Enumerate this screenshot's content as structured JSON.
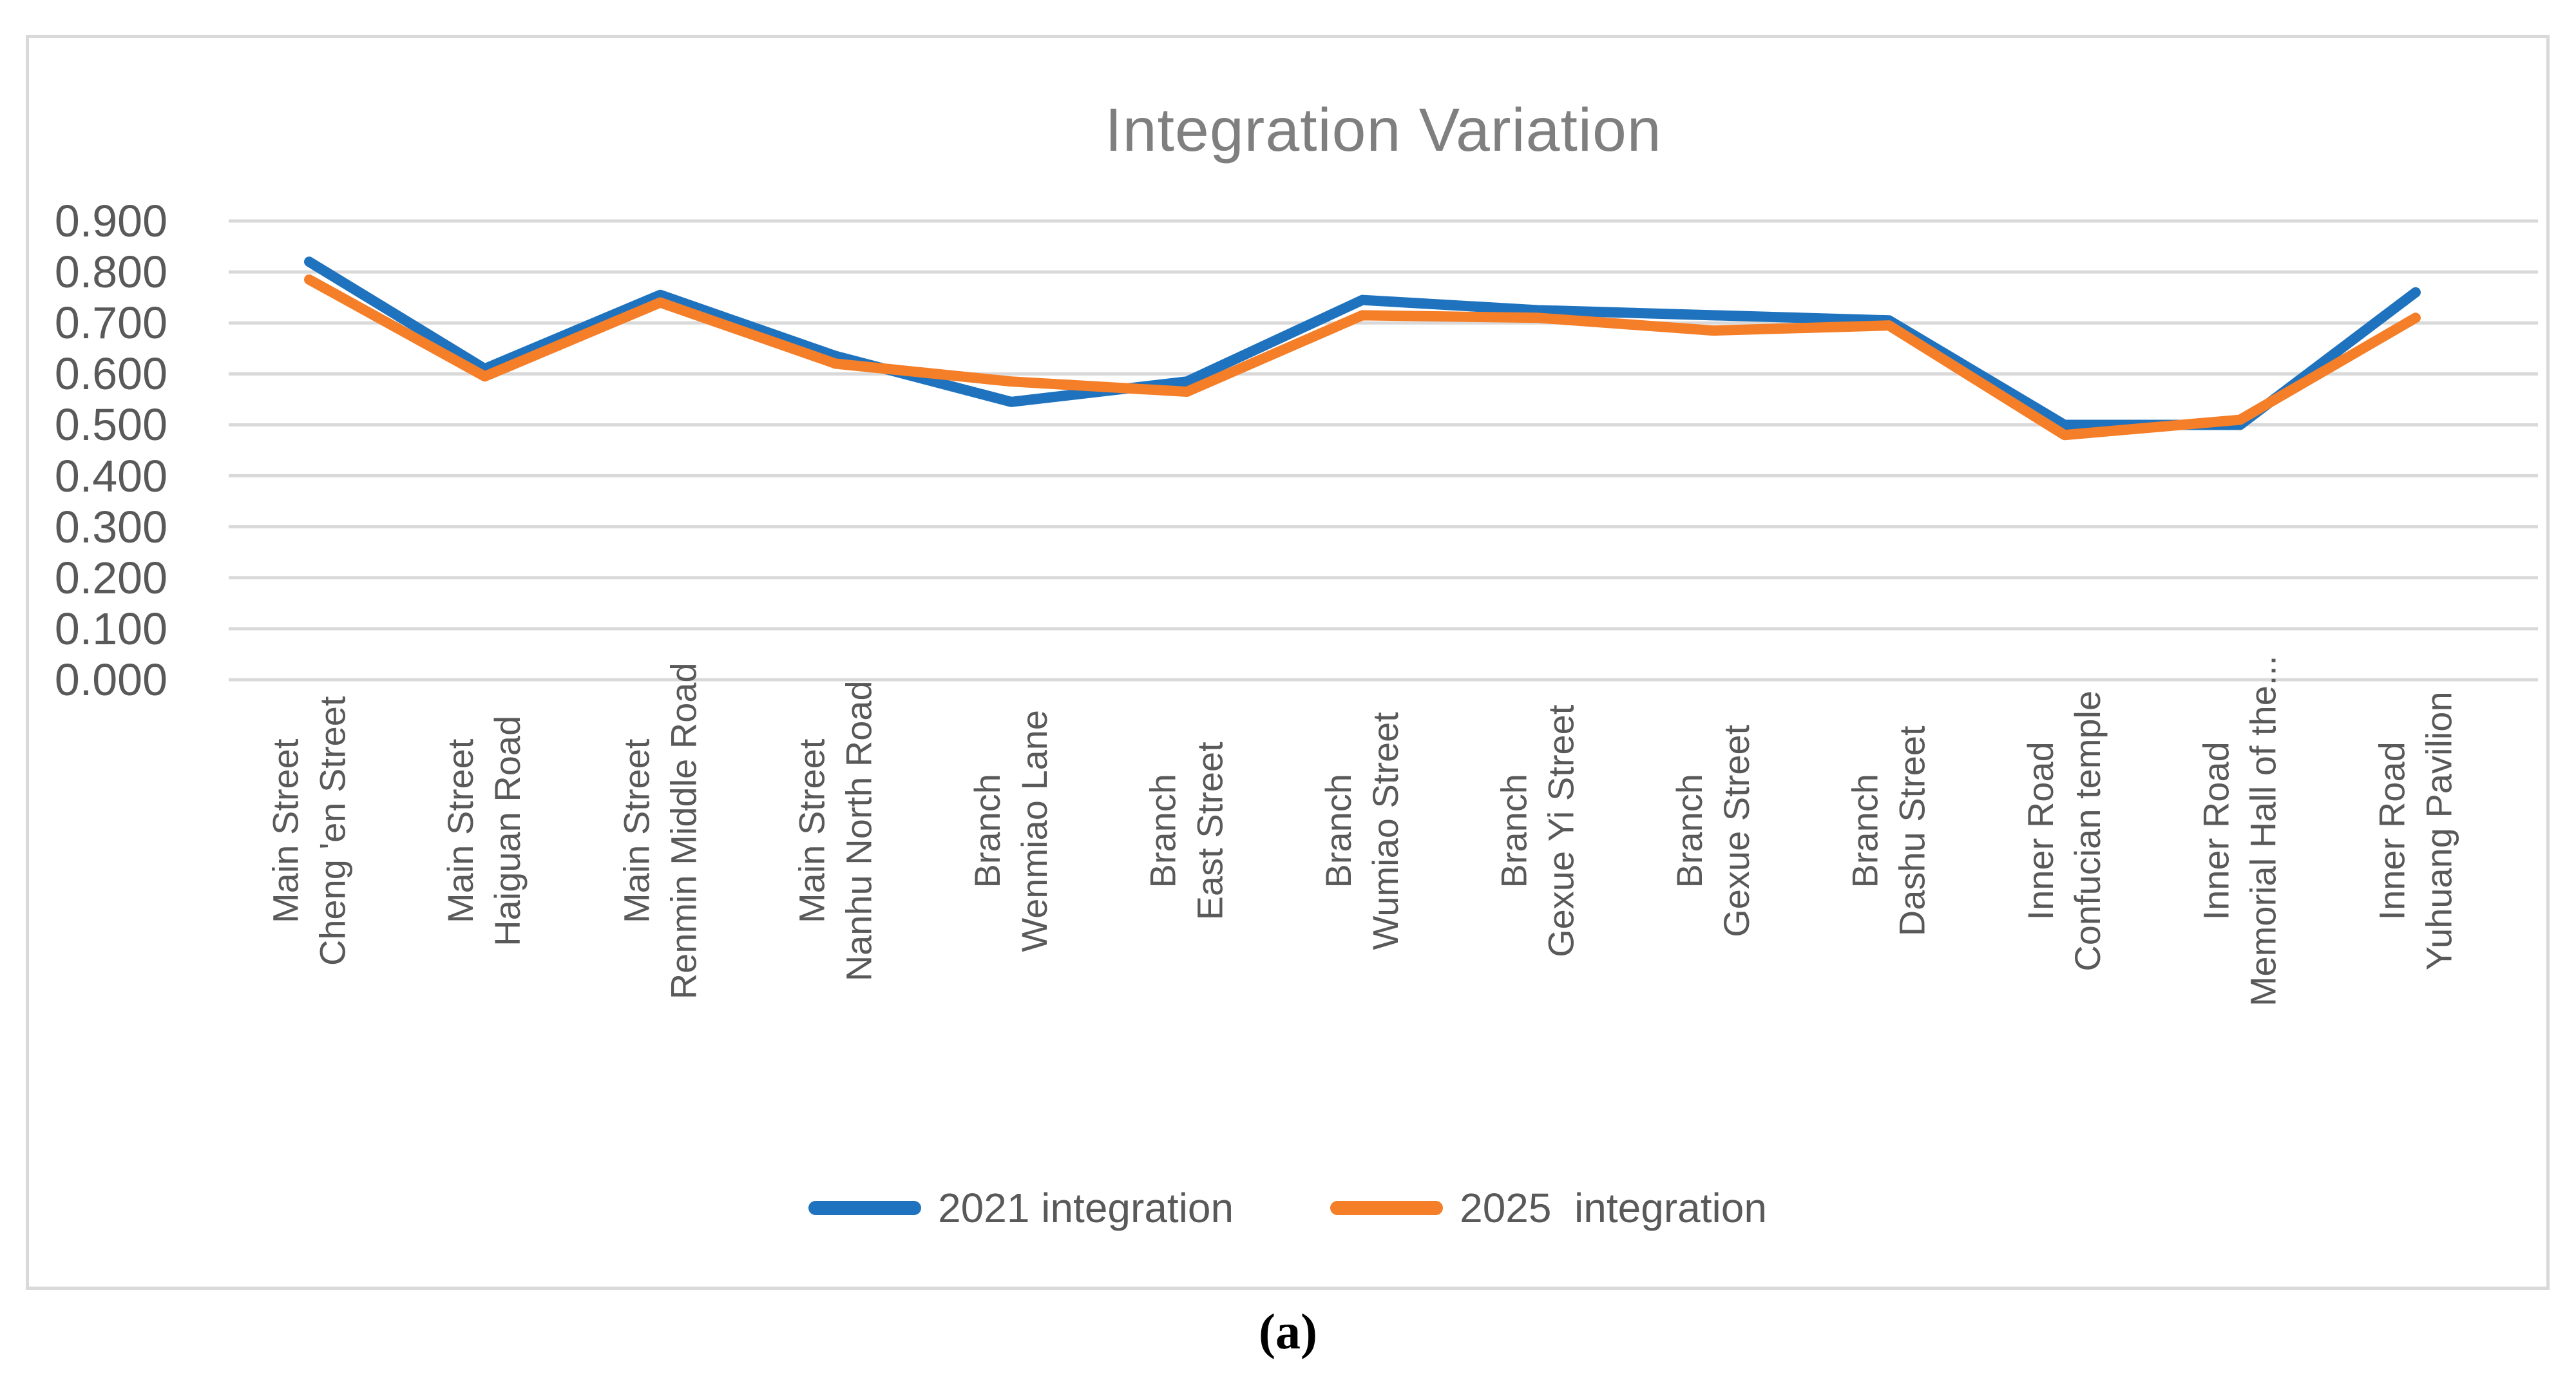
{
  "figure": {
    "caption": "(a)"
  },
  "colors": {
    "frame": "#d9d9d9",
    "gridline": "#d9d9d9",
    "title_text": "#7f7f7f",
    "axis_text": "#595959",
    "series_2021": "#1f73be",
    "series_2025": "#f57e28"
  },
  "chart_data": {
    "type": "line",
    "title": "Integration Variation",
    "xlabel": "",
    "ylabel": "",
    "ylim": [
      0,
      0.9
    ],
    "ytick_labels": [
      "0.900",
      "0.800",
      "0.700",
      "0.600",
      "0.500",
      "0.400",
      "0.300",
      "0.200",
      "0.100",
      "0.000"
    ],
    "grid": "horizontal",
    "legend_position": "bottom-center",
    "categories": [
      [
        "Main Street",
        "Cheng 'en Street"
      ],
      [
        "Main Street",
        "Haiguan Road"
      ],
      [
        "Main Street",
        "Renmin Middle Road"
      ],
      [
        "Main Street",
        "Nanhu North Road"
      ],
      [
        "Branch",
        "Wenmiao Lane"
      ],
      [
        "Branch",
        "East Street"
      ],
      [
        "Branch",
        "Wumiao Street"
      ],
      [
        "Branch",
        "Gexue Yi Street"
      ],
      [
        "Branch",
        "Gexue Street"
      ],
      [
        "Branch",
        "Dashu Street"
      ],
      [
        "Inner Road",
        "Confucian temple"
      ],
      [
        "Inner Road",
        "Memorial Hall of the..."
      ],
      [
        "Inner Road",
        "Yuhuang Pavilion"
      ]
    ],
    "series": [
      {
        "name": "2021 integration",
        "color": "#1f73be",
        "values": [
          0.82,
          0.61,
          0.755,
          0.635,
          0.545,
          0.585,
          0.745,
          0.725,
          0.715,
          0.705,
          0.5,
          0.5,
          0.76
        ]
      },
      {
        "name": "2025  integration",
        "color": "#f57e28",
        "values": [
          0.785,
          0.595,
          0.74,
          0.62,
          0.585,
          0.565,
          0.715,
          0.71,
          0.685,
          0.695,
          0.48,
          0.51,
          0.71
        ]
      }
    ]
  }
}
